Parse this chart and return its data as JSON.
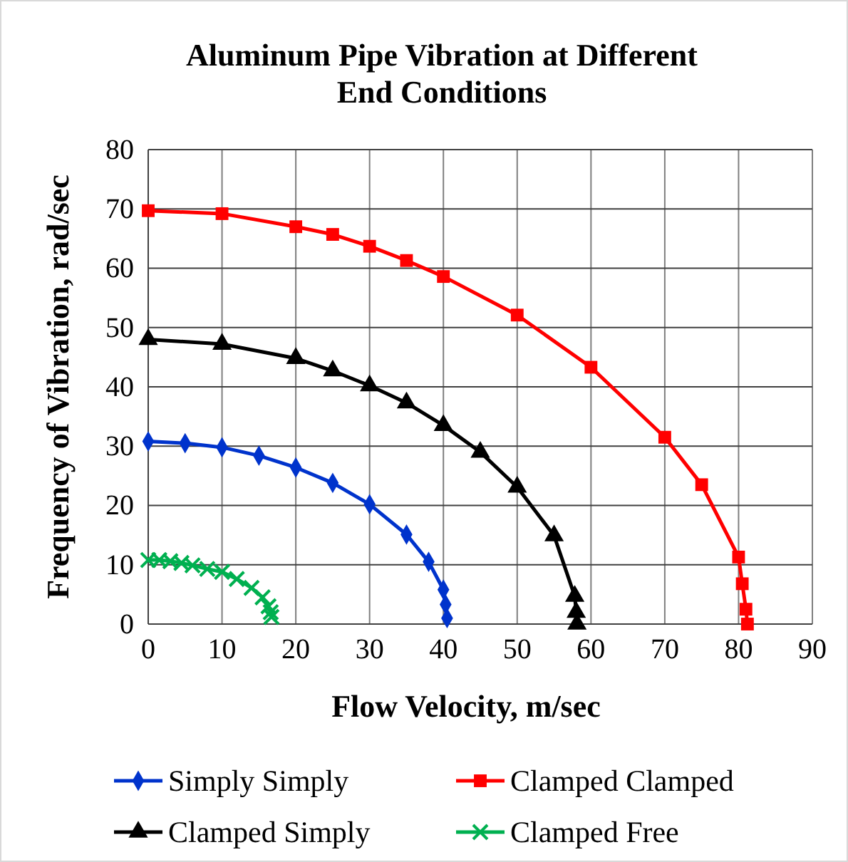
{
  "chart_data": {
    "type": "line",
    "title": "Aluminum Pipe Vibration at Different End Conditions",
    "xlabel": "Flow Velocity, m/sec",
    "ylabel": "Frequency of Vibration, rad/sec",
    "xlim": [
      0,
      90
    ],
    "xticks": [
      0,
      10,
      20,
      30,
      40,
      50,
      60,
      70,
      80,
      90
    ],
    "ylim": [
      0,
      80
    ],
    "yticks": [
      0,
      10,
      20,
      30,
      40,
      50,
      60,
      70,
      80
    ],
    "grid": true,
    "legend": "bottom",
    "series": [
      {
        "name": "Simply Simply",
        "color": "#0033cc",
        "marker": "diamond",
        "x": [
          0,
          5,
          10,
          15,
          20,
          25,
          30,
          35,
          38,
          40,
          40.3,
          40.4,
          40.5
        ],
        "values": [
          30.8,
          30.5,
          29.8,
          28.4,
          26.4,
          23.8,
          20.2,
          15.1,
          10.5,
          5.8,
          3.3,
          null,
          1
        ]
      },
      {
        "name": "Clamped Clamped",
        "color": "#ff0000",
        "marker": "square",
        "x": [
          0,
          10,
          20,
          25,
          30,
          35,
          40,
          50,
          60,
          70,
          75,
          80,
          80.5,
          81,
          81.1,
          81.2
        ],
        "values": [
          69.7,
          69.2,
          67,
          65.7,
          63.7,
          61.3,
          58.6,
          52.1,
          43.3,
          31.5,
          23.5,
          11.3,
          6.8,
          2.5,
          null,
          0
        ]
      },
      {
        "name": "Clamped Simply",
        "color": "#000000",
        "marker": "triangle",
        "x": [
          0,
          10,
          20,
          25,
          30,
          35,
          40,
          45,
          50,
          55,
          57.8,
          58,
          58.1
        ],
        "values": [
          48,
          47.2,
          44.8,
          42.7,
          40.2,
          37.3,
          33.5,
          29,
          23.1,
          14.9,
          4.7,
          2,
          0
        ]
      },
      {
        "name": "Clamped Free",
        "color": "#00b050",
        "marker": "cross",
        "x": [
          0,
          1.5,
          3,
          4.5,
          6,
          8,
          10,
          12,
          14,
          15.5,
          16.3,
          16.6,
          16.7
        ],
        "values": [
          10.8,
          10.8,
          10.6,
          10.3,
          9.9,
          9.3,
          8.8,
          7.6,
          6.1,
          4.5,
          3,
          2,
          1.2
        ]
      }
    ]
  }
}
